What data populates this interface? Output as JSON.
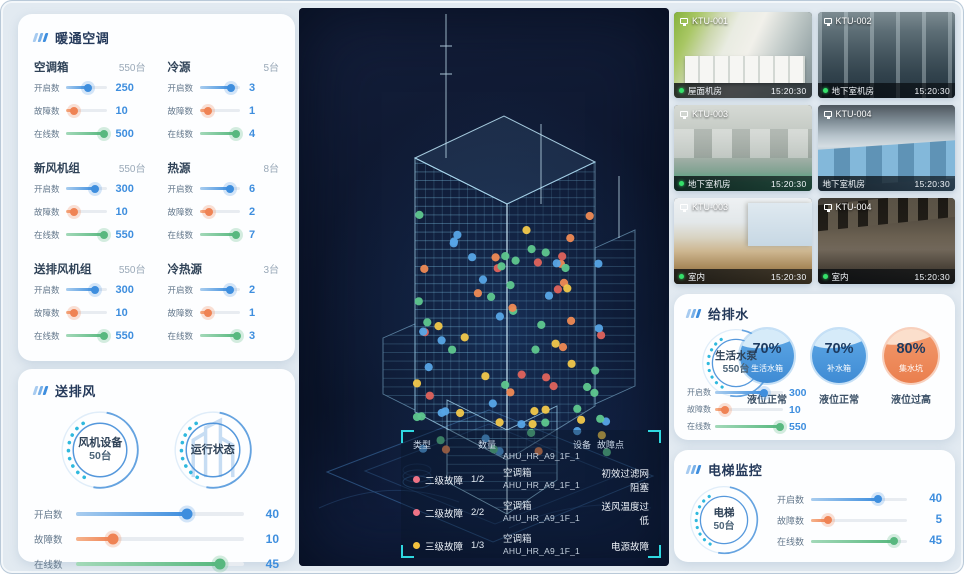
{
  "colors": {
    "accent_blue": "#3E8EDE",
    "accent_orange": "#EF8354",
    "accent_green": "#58B87F",
    "accent_cyan": "#2FD8E0",
    "value_text": "#3E8EDE",
    "panel_title": "#24395A",
    "level2_fault_dot": "#EE7386",
    "level3_fault_dot": "#F3C13E",
    "live_dot": "#35E06A"
  },
  "hvac_panel": {
    "title": "暖通空调",
    "groups": [
      {
        "name": "空调箱",
        "total": "550台",
        "metrics": [
          {
            "label": "开启数",
            "value": "250",
            "pct": 55,
            "color": "blue"
          },
          {
            "label": "故障数",
            "value": "10",
            "pct": 20,
            "color": "orange"
          },
          {
            "label": "在线数",
            "value": "500",
            "pct": 93,
            "color": "green"
          }
        ]
      },
      {
        "name": "冷源",
        "total": "5台",
        "metrics": [
          {
            "label": "开启数",
            "value": "3",
            "pct": 78,
            "color": "blue"
          },
          {
            "label": "故障数",
            "value": "1",
            "pct": 20,
            "color": "orange"
          },
          {
            "label": "在线数",
            "value": "4",
            "pct": 90,
            "color": "green"
          }
        ]
      },
      {
        "name": "新风机组",
        "total": "550台",
        "metrics": [
          {
            "label": "开启数",
            "value": "300",
            "pct": 72,
            "color": "blue"
          },
          {
            "label": "故障数",
            "value": "10",
            "pct": 20,
            "color": "orange"
          },
          {
            "label": "在线数",
            "value": "550",
            "pct": 95,
            "color": "green"
          }
        ]
      },
      {
        "name": "热源",
        "total": "8台",
        "metrics": [
          {
            "label": "开启数",
            "value": "6",
            "pct": 76,
            "color": "blue"
          },
          {
            "label": "故障数",
            "value": "2",
            "pct": 24,
            "color": "orange"
          },
          {
            "label": "在线数",
            "value": "7",
            "pct": 90,
            "color": "green"
          }
        ]
      },
      {
        "name": "送排风机组",
        "total": "550台",
        "metrics": [
          {
            "label": "开启数",
            "value": "300",
            "pct": 72,
            "color": "blue"
          },
          {
            "label": "故障数",
            "value": "10",
            "pct": 20,
            "color": "orange"
          },
          {
            "label": "在线数",
            "value": "550",
            "pct": 95,
            "color": "green"
          }
        ]
      },
      {
        "name": "冷热源",
        "total": "3台",
        "metrics": [
          {
            "label": "开启数",
            "value": "2",
            "pct": 76,
            "color": "blue"
          },
          {
            "label": "故障数",
            "value": "1",
            "pct": 20,
            "color": "orange"
          },
          {
            "label": "在线数",
            "value": "3",
            "pct": 93,
            "color": "green"
          }
        ]
      }
    ]
  },
  "fan_panel": {
    "title": "送排风",
    "circles": [
      {
        "line1": "风机设备",
        "line2": "50台"
      },
      {
        "line1": "运行状态",
        "line2": ""
      }
    ],
    "metrics": [
      {
        "label": "开启数",
        "value": "40",
        "pct": 66,
        "color": "blue"
      },
      {
        "label": "故障数",
        "value": "10",
        "pct": 22,
        "color": "orange"
      },
      {
        "label": "在线数",
        "value": "45",
        "pct": 86,
        "color": "green"
      }
    ]
  },
  "center": {
    "building_dots": {
      "count": 88,
      "palette": [
        "#5fc78e",
        "#57a5e6",
        "#ef8a54",
        "#f2c84b",
        "#e0635c"
      ],
      "weights": [
        0.34,
        0.3,
        0.14,
        0.12,
        0.1
      ]
    },
    "table": {
      "headers": [
        "类型",
        "数量",
        "设备",
        "故障点"
      ],
      "partial_row_text": "AHU_HR_A9_1F_1",
      "rows": [
        {
          "dot": "#ee7386",
          "type": "二级故障",
          "qty": "1/2",
          "device_line1": "空调箱",
          "device_line2": "AHU_HR_A9_1F_1",
          "fault": "初效过滤网阻塞"
        },
        {
          "dot": "#ee7386",
          "type": "二级故障",
          "qty": "2/2",
          "device_line1": "空调箱",
          "device_line2": "AHU_HR_A9_1F_1",
          "fault": "送风温度过低"
        },
        {
          "dot": "#f3c13e",
          "type": "三级故障",
          "qty": "1/3",
          "device_line1": "空调箱",
          "device_line2": "AHU_HR_A9_1F_1",
          "fault": "电源故障"
        }
      ]
    }
  },
  "cameras": [
    {
      "id": "KTU-001",
      "location": "屋面机房",
      "time": "15:20:30",
      "scene": "rooftop",
      "live": "on"
    },
    {
      "id": "KTU-002",
      "location": "地下室机房",
      "time": "15:20:30",
      "scene": "pumps",
      "live": "on"
    },
    {
      "id": "KTU-003",
      "location": "地下室机房",
      "time": "15:20:30",
      "scene": "machine",
      "live": "on"
    },
    {
      "id": "KTU-004",
      "location": "地下室机房",
      "time": "15:20:30",
      "scene": "ahu",
      "live": "off"
    },
    {
      "id": "KTU-003",
      "location": "室内",
      "time": "15:20:30",
      "scene": "office1",
      "live": "on"
    },
    {
      "id": "KTU-004",
      "location": "室内",
      "time": "15:20:30",
      "scene": "office2",
      "live": "on"
    }
  ],
  "water_panel": {
    "title": "给排水",
    "circle": {
      "line1": "生活水泵",
      "line2": "550台"
    },
    "gauges": [
      {
        "pct": "70%",
        "label": "生活水箱",
        "status": "液位正常",
        "theme": "blue"
      },
      {
        "pct": "70%",
        "label": "补水箱",
        "status": "液位正常",
        "theme": "blue"
      },
      {
        "pct": "80%",
        "label": "集水坑",
        "status": "液位过高",
        "theme": "orange"
      }
    ],
    "metrics": [
      {
        "label": "开启数",
        "value": "300",
        "pct": 72,
        "color": "blue"
      },
      {
        "label": "故障数",
        "value": "10",
        "pct": 14,
        "color": "orange"
      },
      {
        "label": "在线数",
        "value": "550",
        "pct": 95,
        "color": "green"
      }
    ]
  },
  "elevator_panel": {
    "title": "电梯监控",
    "circle": {
      "line1": "电梯",
      "line2": "50台"
    },
    "metrics": [
      {
        "label": "开启数",
        "value": "40",
        "pct": 70,
        "color": "blue"
      },
      {
        "label": "故障数",
        "value": "5",
        "pct": 18,
        "color": "orange"
      },
      {
        "label": "在线数",
        "value": "45",
        "pct": 86,
        "color": "green"
      }
    ]
  }
}
